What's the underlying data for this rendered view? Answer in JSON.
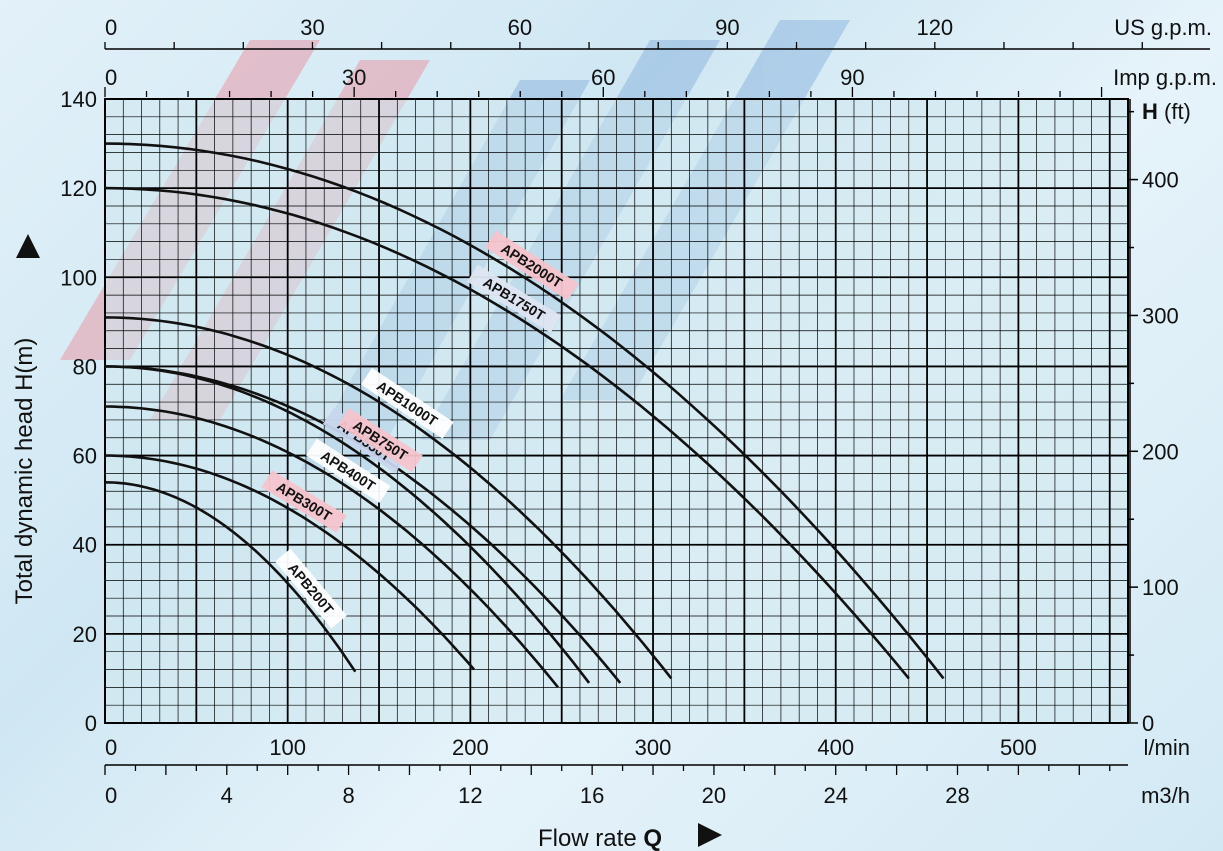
{
  "chart_data": {
    "type": "line",
    "title": "",
    "xlabel": "Flow rate Q",
    "ylabel": "Total dynamic head H(m)",
    "x_unit": "l/min",
    "xlim": [
      0,
      560
    ],
    "ylim": [
      0,
      140
    ],
    "grid": true,
    "y_ticks": [
      0,
      20,
      40,
      60,
      80,
      100,
      120,
      140
    ],
    "x_ticks_lmin": [
      0,
      100,
      200,
      300,
      400,
      500
    ],
    "x_ticks_lmin_labels": [
      "0",
      "100",
      "200",
      "300",
      "400",
      "500"
    ],
    "x_ticks_m3h": [
      0,
      4,
      8,
      12,
      16,
      20,
      24,
      28
    ],
    "x_ticks_m3h_labels": [
      "0",
      "4",
      "8",
      "12",
      "16",
      "20",
      "24",
      "28"
    ],
    "x_unit_m3h": "m3/h",
    "top_axis_usgpm": {
      "unit": "US g.p.m.",
      "ticks": [
        0,
        30,
        60,
        90,
        120
      ]
    },
    "top_axis_impgpm": {
      "unit": "Imp g.p.m.",
      "ticks": [
        0,
        30,
        60,
        90
      ]
    },
    "right_axis_ft": {
      "unit_bold": "H",
      "unit": "(ft)",
      "ticks": [
        0,
        100,
        200,
        300,
        400
      ]
    },
    "series": [
      {
        "name": "APB200T",
        "shutoff_head": 54,
        "end_flow": 137,
        "end_head": 11.5,
        "label_color": "#ffffff"
      },
      {
        "name": "APB300T",
        "shutoff_head": 60,
        "end_flow": 202,
        "end_head": 12,
        "label_color": "#f6c4cc"
      },
      {
        "name": "APB400T",
        "shutoff_head": 71,
        "end_flow": 248,
        "end_head": 8,
        "label_color": "#ffffff"
      },
      {
        "name": "APB550T",
        "shutoff_head": 80,
        "end_flow": 265,
        "end_head": 9,
        "label_color": "#c8d6ee"
      },
      {
        "name": "APB750T",
        "shutoff_head": 80,
        "end_flow": 282,
        "end_head": 9,
        "label_color": "#f6c4cc"
      },
      {
        "name": "APB1000T",
        "shutoff_head": 91,
        "end_flow": 310,
        "end_head": 10,
        "label_color": "#ffffff"
      },
      {
        "name": "APB1750T",
        "shutoff_head": 120,
        "end_flow": 440,
        "end_head": 10,
        "label_color": "#dfe6f2"
      },
      {
        "name": "APB2000T",
        "shutoff_head": 130,
        "end_flow": 459,
        "end_head": 10,
        "label_color": "#f6c4cc"
      }
    ]
  },
  "colors": {
    "curve": "#111111",
    "grid": "#000000",
    "plot_bg": "#cfe7ee"
  }
}
